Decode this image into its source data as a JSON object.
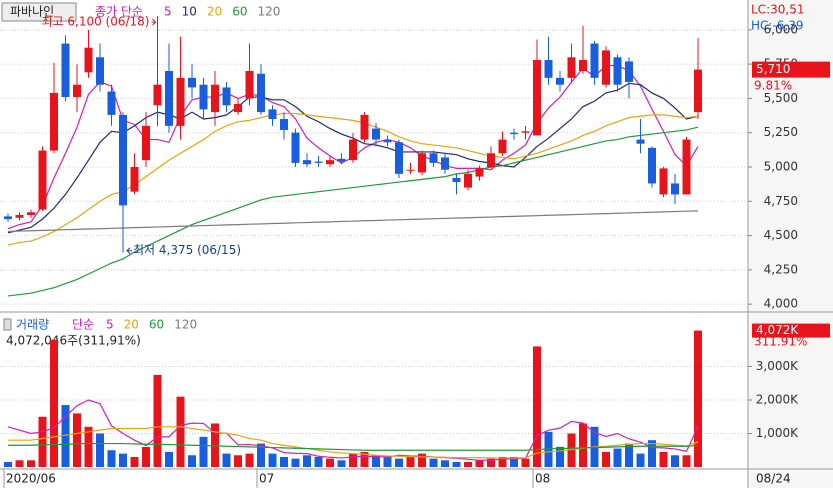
{
  "chart_data": [
    {
      "type": "candlestick",
      "legend_title": "종가 단순",
      "button": "파바나인",
      "open": [
        4640,
        4630,
        4650,
        4690,
        5120,
        5900,
        5510,
        5690,
        5800,
        5550,
        5380,
        4820,
        5050,
        5450,
        5700,
        5300,
        5650,
        5600,
        5400,
        5580,
        5400,
        5500,
        5680,
        5420,
        5350,
        5250,
        5050,
        5040,
        5020,
        5060,
        5050,
        5200,
        5280,
        5200,
        5180,
        4980,
        4960,
        5100,
        5070,
        4920,
        4850,
        4930,
        5000,
        5100,
        5250,
        5250,
        5230,
        5780,
        5650,
        5650,
        5700,
        5900,
        5600,
        5800,
        5770,
        5200,
        5140,
        4800,
        4880,
        4800,
        5400
      ],
      "high": [
        4660,
        4670,
        4690,
        5150,
        5760,
        5960,
        5750,
        6000,
        5900,
        5600,
        5400,
        5100,
        5400,
        6100,
        5900,
        5950,
        5750,
        5650,
        5700,
        5620,
        5500,
        5900,
        5750,
        5450,
        5400,
        5280,
        5100,
        5080,
        5080,
        5100,
        5250,
        5400,
        5320,
        5230,
        5200,
        5030,
        5120,
        5120,
        5100,
        4950,
        4980,
        5010,
        5150,
        5260,
        5280,
        5300,
        5930,
        5950,
        5700,
        5900,
        6030,
        5920,
        5880,
        5820,
        5800,
        5350,
        5150,
        5000,
        4950,
        5220,
        5940
      ],
      "low": [
        4600,
        4610,
        4630,
        4680,
        5100,
        5480,
        5400,
        5650,
        5550,
        5300,
        4375,
        4800,
        5000,
        5300,
        5250,
        5200,
        5500,
        5350,
        5300,
        5400,
        5380,
        5450,
        5380,
        5300,
        5200,
        5000,
        5000,
        5000,
        5000,
        5020,
        5030,
        5180,
        5150,
        5150,
        4920,
        4950,
        4940,
        5000,
        4950,
        4800,
        4830,
        4900,
        4990,
        5080,
        5200,
        5200,
        5230,
        5600,
        5550,
        5620,
        5680,
        5600,
        5580,
        5550,
        5500,
        5100,
        4850,
        4780,
        4730,
        4800,
        5350
      ],
      "close": [
        4620,
        4650,
        4670,
        5120,
        5540,
        5510,
        5600,
        5870,
        5600,
        5380,
        4720,
        5000,
        5300,
        5600,
        5300,
        5650,
        5580,
        5420,
        5600,
        5450,
        5460,
        5700,
        5400,
        5350,
        5270,
        5030,
        5020,
        5030,
        5050,
        5040,
        5200,
        5380,
        5200,
        5180,
        4950,
        4980,
        5100,
        5030,
        4980,
        4890,
        4950,
        4990,
        5100,
        5200,
        5240,
        5260,
        5780,
        5650,
        5600,
        5800,
        5780,
        5650,
        5850,
        5600,
        5620,
        5170,
        4880,
        4990,
        4800,
        5200,
        5710
      ],
      "up_color": "#e8141b",
      "down_color": "#1a5ee0",
      "series": [
        {
          "name": "5",
          "color": "#d21fb4",
          "values": [
            4550,
            4580,
            4600,
            4720,
            4920,
            5100,
            5290,
            5530,
            5620,
            5590,
            5340,
            5310,
            5200,
            5200,
            5180,
            5370,
            5490,
            5510,
            5510,
            5540,
            5500,
            5530,
            5520,
            5470,
            5440,
            5350,
            5210,
            5140,
            5080,
            5030,
            5070,
            5140,
            5180,
            5200,
            5180,
            5140,
            5080,
            5050,
            5010,
            4990,
            4990,
            4990,
            4980,
            5050,
            5100,
            5160,
            5320,
            5430,
            5510,
            5620,
            5720,
            5660,
            5740,
            5740,
            5700,
            5590,
            5420,
            5260,
            5090,
            5010,
            5150
          ]
        },
        {
          "name": "10",
          "color": "#1b2b6e",
          "values": [
            4520,
            4540,
            4560,
            4620,
            4700,
            4800,
            4920,
            5050,
            5180,
            5260,
            5250,
            5300,
            5360,
            5400,
            5380,
            5350,
            5400,
            5350,
            5360,
            5380,
            5440,
            5510,
            5510,
            5490,
            5490,
            5440,
            5370,
            5330,
            5280,
            5240,
            5210,
            5170,
            5160,
            5140,
            5110,
            5110,
            5110,
            5110,
            5100,
            5090,
            5060,
            5040,
            5030,
            5010,
            5000,
            5070,
            5150,
            5210,
            5280,
            5350,
            5440,
            5480,
            5540,
            5560,
            5610,
            5600,
            5540,
            5500,
            5430,
            5350,
            5370
          ]
        },
        {
          "name": "20",
          "color": "#e6a412",
          "values": [
            4430,
            4450,
            4460,
            4490,
            4530,
            4580,
            4630,
            4690,
            4750,
            4800,
            4820,
            4870,
            4930,
            4990,
            5050,
            5100,
            5150,
            5200,
            5260,
            5300,
            5330,
            5340,
            5360,
            5380,
            5390,
            5390,
            5380,
            5370,
            5360,
            5350,
            5340,
            5320,
            5290,
            5260,
            5220,
            5190,
            5170,
            5160,
            5150,
            5140,
            5120,
            5100,
            5080,
            5070,
            5060,
            5080,
            5100,
            5130,
            5160,
            5190,
            5230,
            5260,
            5300,
            5330,
            5360,
            5370,
            5380,
            5380,
            5370,
            5360,
            5370
          ]
        },
        {
          "name": "60",
          "color": "#1f9a3a",
          "values": [
            4060,
            4070,
            4080,
            4100,
            4120,
            4150,
            4180,
            4220,
            4260,
            4300,
            4330,
            4380,
            4420,
            4460,
            4500,
            4540,
            4580,
            4610,
            4640,
            4670,
            4700,
            4730,
            4760,
            4780,
            4790,
            4800,
            4810,
            4820,
            4830,
            4840,
            4850,
            4860,
            4870,
            4880,
            4890,
            4900,
            4910,
            4920,
            4930,
            4950,
            4960,
            4980,
            5000,
            5010,
            5030,
            5050,
            5070,
            5090,
            5110,
            5130,
            5150,
            5170,
            5190,
            5200,
            5220,
            5230,
            5240,
            5250,
            5260,
            5270,
            5290
          ]
        },
        {
          "name": "120",
          "color": "#7a7a7a",
          "values": [
            4530,
            4533,
            4535,
            4538,
            4540,
            4543,
            4545,
            4548,
            4550,
            4553,
            4555,
            4558,
            4560,
            4563,
            4565,
            4568,
            4570,
            4573,
            4575,
            4578,
            4580,
            4583,
            4585,
            4588,
            4590,
            4593,
            4595,
            4598,
            4600,
            4603,
            4605,
            4608,
            4610,
            4613,
            4615,
            4618,
            4620,
            4623,
            4625,
            4628,
            4630,
            4633,
            4635,
            4638,
            4640,
            4643,
            4645,
            4648,
            4650,
            4653,
            4655,
            4658,
            4660,
            4663,
            4665,
            4668,
            4670,
            4673,
            4675,
            4678,
            4680
          ]
        }
      ],
      "ylim": [
        3972,
        6203
      ],
      "yticks": [
        {
          "value": 4000,
          "label": "4,000"
        },
        {
          "value": 4250,
          "label": "4,250"
        },
        {
          "value": 4500,
          "label": "4,500"
        },
        {
          "value": 4750,
          "label": "4,750"
        },
        {
          "value": 5000,
          "label": "5,000"
        },
        {
          "value": 5250,
          "label": "5,250"
        },
        {
          "value": 5500,
          "label": "5,500"
        },
        {
          "value": 5750,
          "label": "5,750"
        },
        {
          "value": 6000,
          "label": "6,000"
        }
      ],
      "grid": true,
      "high_annotation": "최고 6,100 (06/18)",
      "low_annotation": "최저 4,375 (06/15)",
      "last_price": {
        "value": 5710,
        "label": "5,710"
      },
      "change": "9.81%",
      "lc": "LC:30,51",
      "hc": "HC:-6,39"
    },
    {
      "type": "bar",
      "title": "거래량",
      "legend_title": "단순",
      "categories": [
        "2020/06",
        null,
        null,
        null,
        null,
        null,
        null,
        null,
        null,
        null,
        null,
        null,
        null,
        null,
        null,
        null,
        null,
        null,
        null,
        null,
        null,
        null,
        "07",
        null,
        null,
        null,
        null,
        null,
        null,
        null,
        null,
        null,
        null,
        null,
        null,
        null,
        null,
        null,
        null,
        null,
        null,
        null,
        null,
        null,
        null,
        null,
        "08",
        null,
        null,
        null,
        null,
        null,
        null,
        null,
        null,
        null,
        null,
        null,
        null,
        null,
        null
      ],
      "values": [
        150,
        200,
        200,
        1500,
        3800,
        1850,
        1600,
        1200,
        1000,
        500,
        400,
        300,
        600,
        2750,
        450,
        2100,
        350,
        900,
        1300,
        400,
        350,
        400,
        700,
        400,
        300,
        250,
        350,
        300,
        250,
        200,
        400,
        450,
        350,
        300,
        250,
        300,
        400,
        250,
        200,
        150,
        150,
        200,
        250,
        300,
        300,
        250,
        3600,
        1050,
        600,
        1000,
        1300,
        1200,
        450,
        550,
        700,
        400,
        800,
        450,
        350,
        350,
        4072.046
      ],
      "series": [
        {
          "name": "5",
          "color": "#d21fb4",
          "values": [
            1200,
            1100,
            1000,
            1050,
            1170,
            1510,
            1830,
            2000,
            1890,
            1230,
            1000,
            800,
            640,
            900,
            900,
            1240,
            1310,
            1300,
            1010,
            1010,
            660,
            670,
            630,
            570,
            430,
            410,
            400,
            320,
            290,
            270,
            300,
            320,
            310,
            300,
            350,
            330,
            320,
            300,
            280,
            260,
            230,
            200,
            210,
            230,
            250,
            260,
            940,
            1100,
            1160,
            1360,
            1310,
            1030,
            910,
            1000,
            840,
            740,
            580,
            570,
            540,
            470,
            1210
          ]
        },
        {
          "name": "20",
          "color": "#e6a412",
          "values": [
            800,
            800,
            800,
            850,
            900,
            950,
            1000,
            1050,
            1100,
            1150,
            1150,
            1150,
            1150,
            1200,
            1200,
            1200,
            1150,
            1100,
            1050,
            1000,
            950,
            850,
            800,
            700,
            650,
            600,
            550,
            500,
            450,
            420,
            400,
            380,
            350,
            330,
            320,
            310,
            300,
            300,
            290,
            280,
            280,
            280,
            270,
            270,
            270,
            270,
            420,
            450,
            480,
            520,
            560,
            600,
            620,
            650,
            680,
            700,
            700,
            680,
            650,
            630,
            750
          ]
        },
        {
          "name": "60",
          "color": "#1f9a3a",
          "values": [
            650,
            650,
            650,
            660,
            670,
            680,
            690,
            700,
            700,
            700,
            700,
            690,
            680,
            680,
            670,
            660,
            650,
            640,
            630,
            620,
            610,
            600,
            590,
            580,
            570,
            560,
            550,
            540,
            530,
            520,
            510,
            500,
            500,
            500,
            500,
            500,
            500,
            500,
            500,
            500,
            500,
            500,
            500,
            500,
            500,
            500,
            520,
            540,
            550,
            560,
            570,
            580,
            590,
            600,
            610,
            620,
            620,
            620,
            620,
            620,
            650
          ]
        },
        {
          "name": "120",
          "color": "#7a7a7a",
          "values": [
            null,
            null,
            null,
            null,
            null,
            null,
            null,
            null,
            null,
            null,
            null,
            null,
            null,
            null,
            null,
            null,
            null,
            null,
            null,
            null,
            null,
            null,
            null,
            null,
            null,
            null,
            null,
            null,
            null,
            null,
            null,
            null,
            null,
            null,
            null,
            null,
            null,
            null,
            null,
            null,
            null,
            null,
            null,
            null,
            null,
            null,
            null,
            null,
            null,
            null,
            null,
            null,
            null,
            null,
            null,
            null,
            null,
            null,
            null,
            null,
            null
          ]
        }
      ],
      "ylim": [
        0,
        4448
      ],
      "yticks": [
        {
          "value": 1000,
          "label": "1,000K"
        },
        {
          "value": 2000,
          "label": "2,000K"
        },
        {
          "value": 3000,
          "label": "3,000K"
        }
      ],
      "grid": true,
      "volume_text": "4,072,046주(311,91%)",
      "last_volume": {
        "value": 4072,
        "label": "4,072K"
      },
      "ratio": "311.91%",
      "cursor_date": "08/24"
    }
  ]
}
